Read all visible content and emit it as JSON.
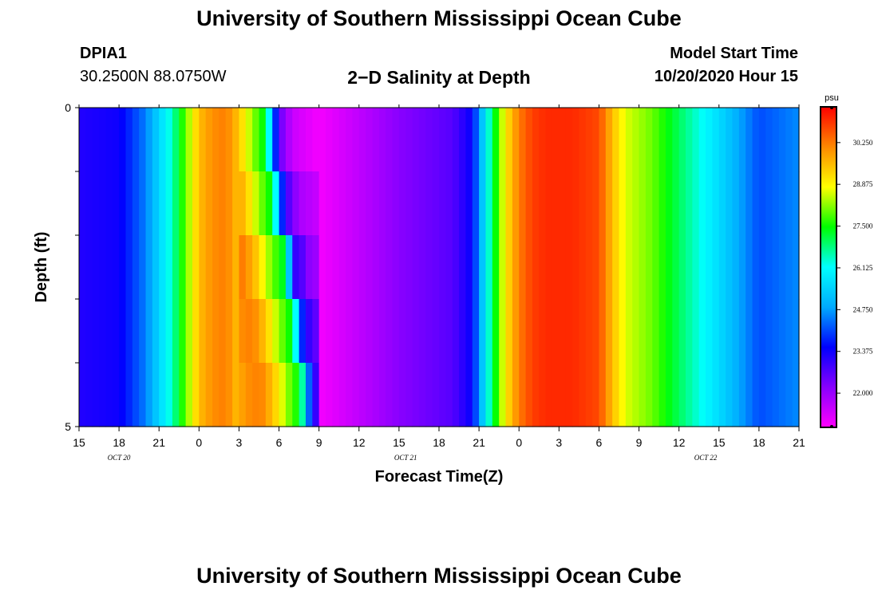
{
  "header": {
    "title": "University of Southern Mississippi Ocean Cube",
    "station_id": "DPIA1",
    "station_coords": "30.2500N 88.0750W",
    "plot_title": "2−D Salinity at Depth",
    "model_start_label": "Model Start Time",
    "model_start_time": "10/20/2020 Hour 15"
  },
  "footer": {
    "title": "University of Southern Mississippi Ocean Cube"
  },
  "chart_data": {
    "type": "heatmap",
    "title": "2-D Salinity at Depth",
    "xlabel": "Forecast Time(Z)",
    "ylabel": "Depth (ft)",
    "x_tick_labels": [
      "15",
      "18",
      "21",
      "0",
      "3",
      "6",
      "9",
      "12",
      "15",
      "18",
      "21",
      "0",
      "3",
      "6",
      "9",
      "12",
      "15",
      "18",
      "21"
    ],
    "x_date_labels": [
      "OCT 20",
      "OCT 21",
      "OCT 22"
    ],
    "x_range_hours": [
      0,
      54
    ],
    "y_tick_labels": [
      "0",
      "5"
    ],
    "y_range": [
      0,
      5
    ],
    "depth_rows": 5,
    "colorbar": {
      "unit": "psu",
      "range": [
        20.9,
        31.4
      ],
      "tick_values": [
        30.25,
        28.875,
        27.5,
        26.125,
        24.75,
        23.375,
        22.0
      ],
      "tick_labels": [
        "30.250",
        "28.875",
        "27.500",
        "26.125",
        "24.750",
        "23.375",
        "22.000"
      ],
      "colors": [
        "#ff00ff",
        "#8800ff",
        "#0000ff",
        "#00aaff",
        "#00ffff",
        "#00ff00",
        "#ffff00",
        "#ff8800",
        "#ff0000"
      ]
    },
    "salinity_profile": {
      "hours": [
        0,
        3,
        5,
        7,
        8,
        9,
        10,
        11,
        12,
        13,
        14,
        14.5,
        15,
        16,
        18,
        21,
        24,
        28,
        29.5,
        31,
        32,
        33,
        34,
        35,
        37,
        39,
        40,
        41,
        42,
        43,
        45,
        48,
        51,
        54
      ],
      "surface": [
        23.2,
        23.4,
        24.5,
        26.5,
        28.0,
        29.5,
        30.0,
        30.2,
        29.4,
        28.2,
        27.3,
        25.0,
        22.6,
        21.5,
        21.0,
        21.6,
        22.2,
        22.7,
        23.5,
        27.0,
        29.0,
        30.2,
        30.8,
        31.0,
        31.0,
        30.7,
        29.5,
        28.6,
        28.3,
        28.0,
        27.0,
        25.6,
        24.1,
        24.6
      ]
    },
    "front_delay_hours_by_depth_row": [
      0,
      0.5,
      1.3,
      2.0,
      2.6
    ],
    "trough_fill_hours_by_depth_row": [
      0,
      0.6,
      1.0,
      1.4,
      1.8
    ]
  }
}
